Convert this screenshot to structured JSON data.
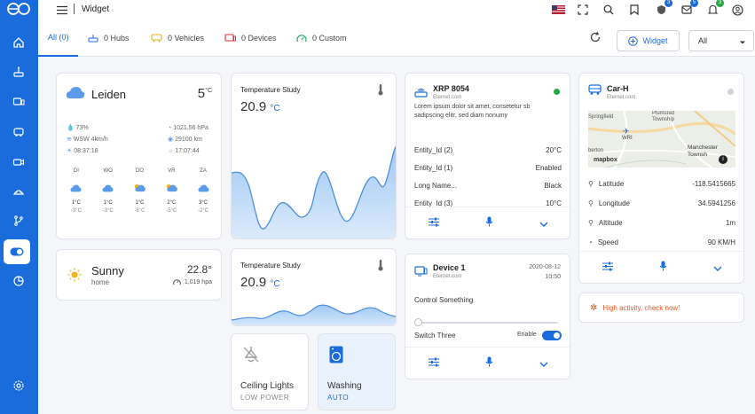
{
  "topbar": {
    "breadcrumb": "Widget",
    "badges": {
      "shield": "3",
      "chat": "5",
      "bell": "3"
    }
  },
  "tabs": [
    {
      "label": "All (0)"
    },
    {
      "label": "0 Hubs"
    },
    {
      "label": "0 Vehicles"
    },
    {
      "label": "0 Devices"
    },
    {
      "label": "0 Custom"
    }
  ],
  "toolbar": {
    "widget_label": "Widget",
    "filter_value": "All"
  },
  "weather": {
    "city": "Leiden",
    "temp": "5",
    "unit": "°C",
    "humidity": "73%",
    "wind": "WSW 4km/h",
    "sunrise": "08:37:18",
    "pressure": "1021.56 hPa",
    "visibility": "29100 km",
    "sunset": "17:07:44",
    "days": [
      {
        "d": "DI",
        "hi": "1°C",
        "lo": "-3°C"
      },
      {
        "d": "WO",
        "hi": "1°C",
        "lo": "-3°C"
      },
      {
        "d": "DO",
        "hi": "1°C",
        "lo": "-6°C"
      },
      {
        "d": "VR",
        "hi": "2°C",
        "lo": "-5°C"
      },
      {
        "d": "ZA",
        "hi": "3°C",
        "lo": "-2°C"
      }
    ]
  },
  "sunny": {
    "label": "Sunny",
    "place": "home",
    "temp": "22.8°",
    "pressure": "1,019 hpa"
  },
  "temp1": {
    "title": "Temperature Study",
    "value": "20.9",
    "unit": "°C"
  },
  "temp2": {
    "title": "Temperature Study",
    "value": "20.9",
    "unit": "°C"
  },
  "ceiling": {
    "title": "Ceiling Lights",
    "status": "LOW POWER"
  },
  "washing": {
    "title": "Washing",
    "status": "AUTO"
  },
  "xrp": {
    "title": "XRP 8054",
    "sub": "Eternet.com",
    "desc": "Lorem ipsum dolor sit amet, consetetur sb sadipscing elitr, sed diam nonumy",
    "rows": [
      {
        "k": "Entity_Id (2)",
        "v": "20°C"
      },
      {
        "k": "Entity_Id (1)",
        "v": "Enabled"
      },
      {
        "k": "Long Name...",
        "v": "Black"
      },
      {
        "k": "Entity_Id (3)",
        "v": "10°C"
      }
    ]
  },
  "device1": {
    "title": "Device 1",
    "sub": "Eternet.com",
    "date": "2020-08-12",
    "time": "10:50",
    "control": "Control Something",
    "switch_label": "Switch Three",
    "enable_label": "Enable"
  },
  "car": {
    "title": "Car-H",
    "sub": "Eternet.com",
    "map_labels": {
      "springfield": "Springfield",
      "township": "Plumsted Township",
      "wri": "WRI",
      "berton": "berton",
      "manchester": "Manchester Townsh",
      "brand": "mapbox"
    },
    "rows": [
      {
        "k": "Latitude",
        "v": "-118.5415665"
      },
      {
        "k": "Longitude",
        "v": "34.5941256"
      },
      {
        "k": "Altitude",
        "v": "1m"
      },
      {
        "k": "Speed",
        "v": "90 KM/H"
      }
    ]
  },
  "alert": {
    "text": "High activity, check now!"
  },
  "colors": {
    "brand": "#1a6bdc",
    "alert": "#e8541e",
    "online": "#28a745"
  }
}
